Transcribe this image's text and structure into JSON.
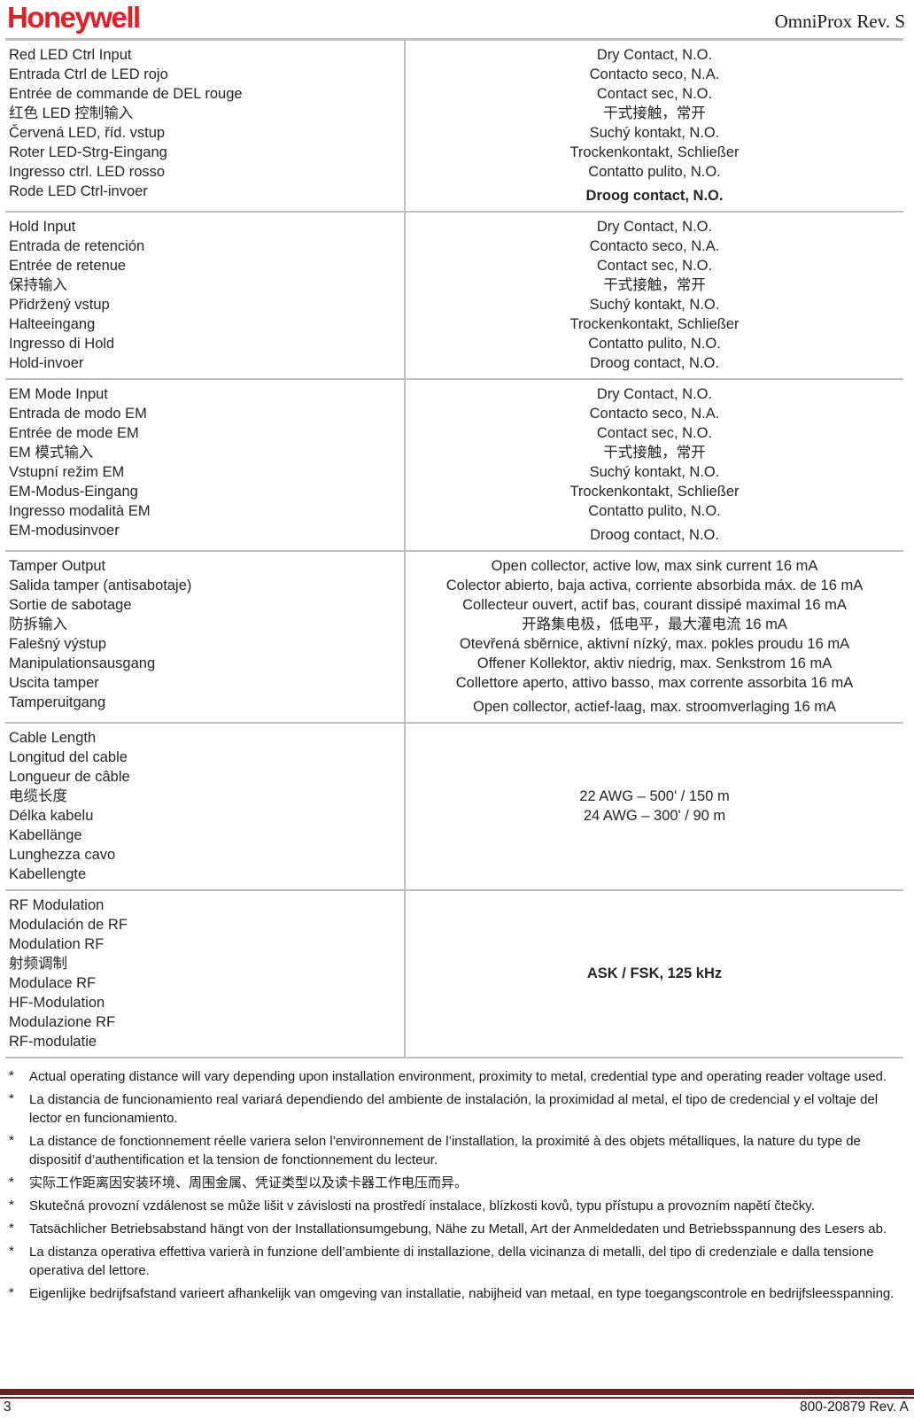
{
  "colors": {
    "brand_red": "#E21E26",
    "footer_maroon": "#632423",
    "border_gray": "#BFBFBF"
  },
  "header": {
    "logo_text": "Honeywell",
    "doc_title": "OmniProx Rev. S"
  },
  "table": {
    "rows": [
      {
        "left": [
          "Red LED Ctrl Input",
          "Entrada Ctrl de LED rojo",
          "Entrée de commande de DEL rouge",
          "红色 LED 控制输入",
          "Červená LED, říd. vstup",
          "Roter LED-Strg-Eingang",
          "Ingresso ctrl. LED rosso",
          "Rode LED Ctrl-invoer"
        ],
        "right": [
          "Dry Contact, N.O.",
          "Contacto seco, N.A.",
          "Contact sec, N.O.",
          "干式接触，常开",
          "Suchý kontakt, N.O.",
          "Trockenkontakt, Schließer",
          "Contatto pulito, N.O.",
          "Droog contact, N.O."
        ],
        "right_last_bold": true,
        "right_gap_last": true
      },
      {
        "left": [
          "Hold Input",
          "Entrada de retención",
          "Entrée de retenue",
          "保持输入",
          "Přidržený vstup",
          "Halteeingang",
          "Ingresso di Hold",
          "Hold-invoer"
        ],
        "right": [
          "Dry Contact, N.O.",
          "Contacto seco, N.A.",
          "Contact sec, N.O.",
          "干式接触，常开",
          "Suchý kontakt, N.O.",
          "Trockenkontakt, Schließer",
          "Contatto pulito, N.O.",
          "Droog contact, N.O."
        ],
        "right_last_bold": false,
        "right_gap_last": false
      },
      {
        "left": [
          "EM Mode Input",
          "Entrada de modo EM",
          "Entrée de mode EM",
          "EM 模式输入",
          "Vstupní režim EM",
          "EM-Modus-Eingang",
          "Ingresso modalità EM",
          "EM-modusinvoer"
        ],
        "right": [
          "Dry Contact, N.O.",
          "Contacto seco, N.A.",
          "Contact sec, N.O.",
          "干式接触，常开",
          "Suchý kontakt, N.O.",
          "Trockenkontakt, Schließer",
          "Contatto pulito, N.O.",
          "Droog contact, N.O."
        ],
        "right_last_bold": false,
        "right_gap_last": true
      },
      {
        "left": [
          "Tamper Output",
          "Salida tamper (antisabotaje)",
          "Sortie de sabotage",
          "防拆输入",
          "Falešný výstup",
          "Manipulationsausgang",
          "Uscita tamper",
          "Tamperuitgang"
        ],
        "right": [
          "Open collector, active low, max sink current 16 mA",
          "Colector abierto, baja activa, corriente absorbida máx. de 16 mA",
          "Collecteur ouvert, actif bas, courant dissipé maximal 16 mA",
          "开路集电极，低电平，最大灌电流 16 mA",
          "Otevřená sběrnice, aktivní nízký, max. pokles proudu 16 mA",
          "Offener Kollektor, aktiv niedrig, max. Senkstrom 16 mA",
          "Collettore aperto, attivo basso, max corrente assorbita 16 mA",
          "Open collector, actief-laag, max. stroomverlaging 16 mA"
        ],
        "right_last_bold": false,
        "right_gap_last": true
      },
      {
        "left": [
          "Cable Length",
          "Longitud del cable",
          "Longueur de câble",
          "电缆长度",
          "Délka kabelu",
          "Kabellänge",
          "Lunghezza cavo",
          "Kabellengte"
        ],
        "right": [
          "22 AWG – 500' / 150 m",
          "24 AWG – 300' / 90 m"
        ],
        "right_valign": "center",
        "right_last_bold": false,
        "right_gap_last": false
      },
      {
        "left": [
          "RF Modulation",
          "Modulación de RF",
          "Modulation RF",
          "射频调制",
          "Modulace RF",
          "HF-Modulation",
          "Modulazione RF",
          "RF-modulatie"
        ],
        "right": [
          "ASK / FSK, 125 kHz"
        ],
        "right_valign": "center",
        "right_bold": true,
        "right_last_bold": false,
        "right_gap_last": false
      }
    ]
  },
  "footnote_marker": "*",
  "footnotes": [
    "Actual operating distance will vary depending upon installation environment, proximity to metal, credential type and operating reader voltage used.",
    "La distancia de funcionamiento real variará dependiendo del ambiente de instalación, la proximidad al metal, el tipo de credencial y el voltaje del lector en funcionamiento.",
    "La distance de fonctionnement réelle variera selon l’environnement de l’installation, la proximité à des objets métalliques, la nature du type de dispositif d’authentification et la tension de fonctionnement du lecteur.",
    "实际工作距离因安装环境、周围金属、凭证类型以及读卡器工作电压而异。",
    "Skutečná provozní vzdálenost se může lišit v závislosti na prostředí instalace, blízkosti kovů, typu přístupu a provozním napětí čtečky.",
    "Tatsächlicher Betriebsabstand hängt von der Installationsumgebung, Nähe zu Metall, Art der Anmeldedaten und Betriebsspannung des Lesers ab.",
    "La distanza operativa effettiva varierà in funzione dell’ambiente di installazione, della vicinanza di metalli, del tipo di credenziale e dalla tensione operativa del lettore.",
    "Eigenlijke bedrijfsafstand varieert afhankelijk van omgeving van installatie, nabijheid van metaal, en type toegangscontrole en bedrijfsleesspanning."
  ],
  "footer": {
    "page_number": "3",
    "doc_number": "800-20879 Rev. A"
  }
}
